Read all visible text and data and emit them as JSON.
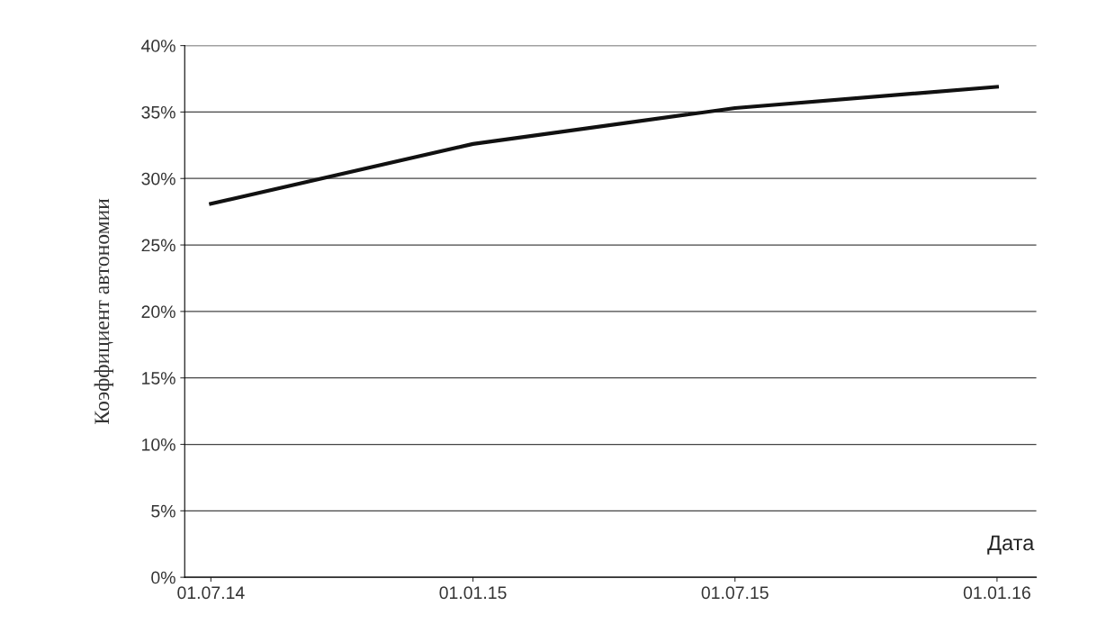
{
  "chart_data": {
    "type": "line",
    "categories": [
      "01.07.14",
      "01.01.15",
      "01.07.15",
      "01.01.16"
    ],
    "series": [
      {
        "color": "#111111",
        "values": [
          28.1,
          32.6,
          35.3,
          36.9
        ]
      }
    ],
    "ylabel": "Коэффициент автономии",
    "xlabel": "Дата",
    "ylim": [
      0,
      40
    ],
    "yticks": [
      {
        "value": 0,
        "label": "0%"
      },
      {
        "value": 5,
        "label": "5%"
      },
      {
        "value": 10,
        "label": "10%"
      },
      {
        "value": 15,
        "label": "15%"
      },
      {
        "value": 20,
        "label": "20%"
      },
      {
        "value": 25,
        "label": "25%"
      },
      {
        "value": 30,
        "label": "30%"
      },
      {
        "value": 35,
        "label": "35%"
      },
      {
        "value": 40,
        "label": "40%"
      }
    ],
    "grid": "y",
    "legend": false,
    "marker": "none",
    "line_style": "solid"
  }
}
